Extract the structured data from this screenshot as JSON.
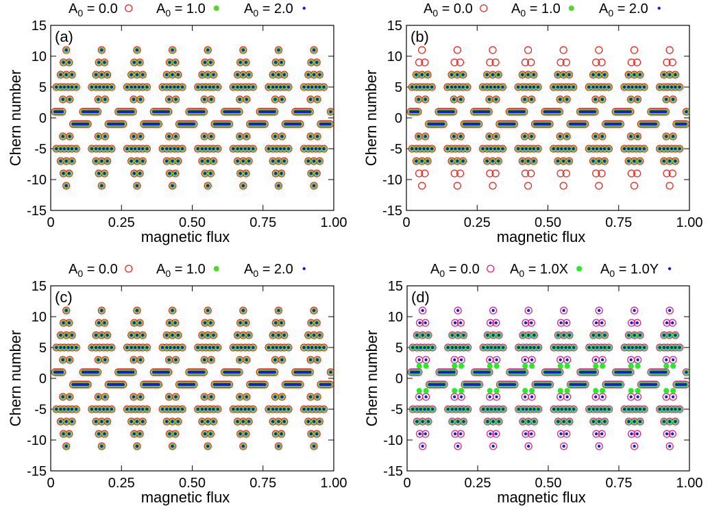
{
  "chart_data": [
    {
      "type": "scatter",
      "panel_label": "(a)",
      "xlabel": "magnetic flux",
      "ylabel": "Chern number",
      "xlim": [
        0,
        1
      ],
      "ylim": [
        -15,
        15
      ],
      "xticks": [
        "0",
        "0.25",
        "0.50",
        "0.75",
        "1.00"
      ],
      "yticks": [
        "-15",
        "-10",
        "-5",
        "0",
        "5",
        "10",
        "15"
      ],
      "legend_position": "top",
      "grid": false,
      "series": [
        {
          "name": "A_0 = 0.0",
          "marker": "open-circle",
          "color": "#e0281e"
        },
        {
          "name": "A_0 = 1.0",
          "marker": "filled-circle",
          "color": "#55d62a"
        },
        {
          "name": "A_0 = 2.0",
          "marker": "small-dot",
          "color": "#1a1ad0"
        }
      ]
    },
    {
      "type": "scatter",
      "panel_label": "(b)",
      "xlabel": "magnetic flux",
      "ylabel": "Chern number",
      "xlim": [
        0,
        1
      ],
      "ylim": [
        -15,
        15
      ],
      "xticks": [
        "0",
        "0.25",
        "0.50",
        "0.75",
        "1.00"
      ],
      "yticks": [
        "-15",
        "-10",
        "-5",
        "0",
        "5",
        "10",
        "15"
      ],
      "legend_position": "top",
      "grid": false,
      "series": [
        {
          "name": "A_0 = 0.0",
          "marker": "open-circle",
          "color": "#e0281e"
        },
        {
          "name": "A_0 = 1.0",
          "marker": "filled-circle",
          "color": "#55d62a"
        },
        {
          "name": "A_0 = 2.0",
          "marker": "small-dot",
          "color": "#1a1ad0"
        }
      ]
    },
    {
      "type": "scatter",
      "panel_label": "(c)",
      "xlabel": "magnetic flux",
      "ylabel": "Chern number",
      "xlim": [
        0,
        1
      ],
      "ylim": [
        -15,
        15
      ],
      "xticks": [
        "0",
        "0.25",
        "0.50",
        "0.75",
        "1.00"
      ],
      "yticks": [
        "-15",
        "-10",
        "-5",
        "0",
        "5",
        "10",
        "15"
      ],
      "legend_position": "top",
      "grid": false,
      "series": [
        {
          "name": "A_0 = 0.0",
          "marker": "open-circle",
          "color": "#e0281e"
        },
        {
          "name": "A_0 = 1.0",
          "marker": "filled-circle",
          "color": "#55d62a"
        },
        {
          "name": "A_0 = 2.0",
          "marker": "small-dot",
          "color": "#1a1ad0"
        }
      ]
    },
    {
      "type": "scatter",
      "panel_label": "(d)",
      "xlabel": "magnetic flux",
      "ylabel": "Chern number",
      "xlim": [
        0,
        1
      ],
      "ylim": [
        -15,
        15
      ],
      "xticks": [
        "0",
        "0.25",
        "0.50",
        "0.75",
        "1.00"
      ],
      "yticks": [
        "-15",
        "-10",
        "-5",
        "0",
        "5",
        "10",
        "15"
      ],
      "legend_position": "top",
      "grid": false,
      "series": [
        {
          "name": "A_0 = 0.0",
          "marker": "open-circle",
          "color": "#d8208c"
        },
        {
          "name": "A_0 = 1.0X",
          "marker": "filled-circle",
          "color": "#22ee22"
        },
        {
          "name": "A_0 = 1.0Y",
          "marker": "small-dot",
          "color": "#1a1ad0"
        }
      ]
    }
  ]
}
